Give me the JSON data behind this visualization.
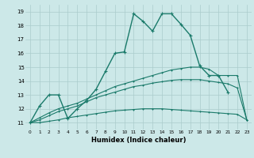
{
  "title": "",
  "xlabel": "Humidex (Indice chaleur)",
  "xlim": [
    -0.5,
    23.5
  ],
  "ylim": [
    10.5,
    19.5
  ],
  "xticks": [
    0,
    1,
    2,
    3,
    4,
    5,
    6,
    7,
    8,
    9,
    10,
    11,
    12,
    13,
    14,
    15,
    16,
    17,
    18,
    19,
    20,
    21,
    22,
    23
  ],
  "yticks": [
    11,
    12,
    13,
    14,
    15,
    16,
    17,
    18,
    19
  ],
  "background_color": "#cce8e8",
  "grid_color": "#aacccc",
  "line_color": "#1a7a6a",
  "lines": [
    {
      "x": [
        0,
        1,
        2,
        3,
        4,
        5,
        6,
        7,
        8,
        9,
        10,
        11,
        12,
        13,
        14,
        15,
        16,
        17,
        18,
        19,
        20,
        21
      ],
      "y": [
        11,
        12.2,
        13.0,
        13.0,
        11.3,
        12.0,
        12.6,
        13.4,
        14.7,
        16.0,
        16.1,
        18.85,
        18.3,
        17.6,
        18.85,
        18.85,
        18.1,
        17.3,
        15.1,
        14.4,
        14.4,
        13.2
      ]
    },
    {
      "x": [
        0,
        1,
        2,
        3,
        4,
        5,
        6,
        7,
        8,
        9,
        10,
        11,
        12,
        13,
        14,
        15,
        16,
        17,
        18,
        19,
        20,
        21,
        22,
        23
      ],
      "y": [
        11,
        11.35,
        11.7,
        12.0,
        12.2,
        12.4,
        12.7,
        13.0,
        13.3,
        13.6,
        13.8,
        14.0,
        14.2,
        14.4,
        14.6,
        14.8,
        14.9,
        15.0,
        15.0,
        14.85,
        14.4,
        14.4,
        14.4,
        11.2
      ]
    },
    {
      "x": [
        0,
        1,
        2,
        3,
        4,
        5,
        6,
        7,
        8,
        9,
        10,
        11,
        12,
        13,
        14,
        15,
        16,
        17,
        18,
        19,
        20,
        21,
        22,
        23
      ],
      "y": [
        11,
        11.2,
        11.5,
        11.8,
        12.0,
        12.2,
        12.5,
        12.8,
        13.0,
        13.2,
        13.4,
        13.6,
        13.7,
        13.85,
        13.95,
        14.05,
        14.1,
        14.1,
        14.1,
        14.0,
        13.9,
        13.8,
        13.5,
        11.2
      ]
    },
    {
      "x": [
        0,
        1,
        2,
        3,
        4,
        5,
        6,
        7,
        8,
        9,
        10,
        11,
        12,
        13,
        14,
        15,
        16,
        17,
        18,
        19,
        20,
        21,
        22,
        23
      ],
      "y": [
        11,
        11.0,
        11.1,
        11.2,
        11.35,
        11.45,
        11.55,
        11.65,
        11.75,
        11.85,
        11.9,
        11.95,
        12.0,
        12.0,
        12.0,
        11.95,
        11.9,
        11.85,
        11.8,
        11.75,
        11.7,
        11.65,
        11.6,
        11.2
      ]
    }
  ]
}
